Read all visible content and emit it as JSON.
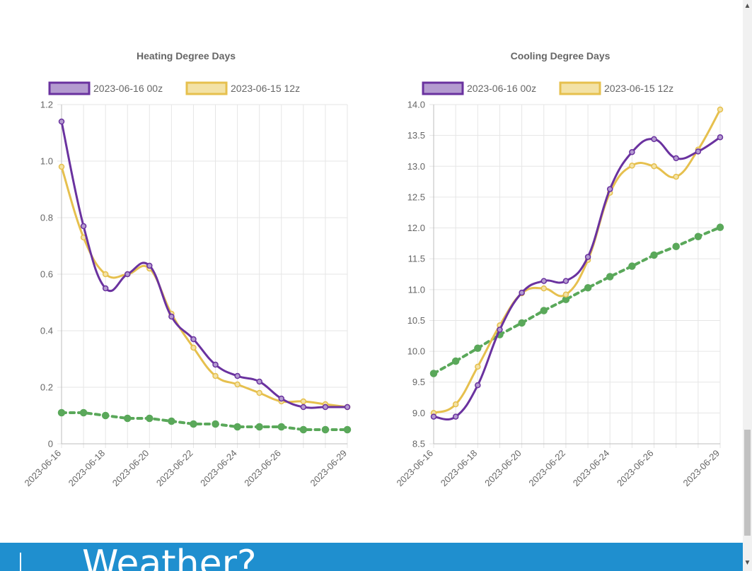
{
  "charts": [
    {
      "title": "Heating Degree Days",
      "legend": [
        "2023-06-16 00z",
        "2023-06-15 12z"
      ]
    },
    {
      "title": "Cooling Degree Days",
      "legend": [
        "2023-06-16 00z",
        "2023-06-15 12z"
      ]
    }
  ],
  "colors": {
    "run_00z": "#6a329f",
    "run_00z_fill": "#b49bd0",
    "run_12z": "#e6c04e",
    "run_12z_fill": "#f3e2a6",
    "normal": "#5aa85a",
    "band": "#1f8fcf"
  },
  "footer": {
    "brand": "Weather?"
  },
  "chart_data": [
    {
      "type": "line",
      "title": "Heating Degree Days",
      "ylim": [
        0,
        1.2
      ],
      "yticks": [
        "0",
        "0.2",
        "0.4",
        "0.6",
        "0.8",
        "1.0",
        "1.2"
      ],
      "x": [
        "2023-06-16",
        "2023-06-17",
        "2023-06-18",
        "2023-06-19",
        "2023-06-20",
        "2023-06-21",
        "2023-06-22",
        "2023-06-23",
        "2023-06-24",
        "2023-06-25",
        "2023-06-26",
        "2023-06-27",
        "2023-06-28",
        "2023-06-29"
      ],
      "xtick_labels": [
        "2023-06-16",
        "2023-06-18",
        "2023-06-20",
        "2023-06-22",
        "2023-06-24",
        "2023-06-26",
        "2023-06-29"
      ],
      "series": [
        {
          "name": "2023-06-16 00z",
          "values": [
            1.14,
            0.77,
            0.55,
            0.6,
            0.63,
            0.45,
            0.37,
            0.28,
            0.24,
            0.22,
            0.16,
            0.13,
            0.13,
            0.13
          ]
        },
        {
          "name": "2023-06-15 12z",
          "values": [
            0.98,
            0.73,
            0.6,
            0.6,
            0.62,
            0.46,
            0.34,
            0.24,
            0.21,
            0.18,
            0.15,
            0.15,
            0.14,
            0.13
          ]
        },
        {
          "values": [
            0.11,
            0.11,
            0.1,
            0.09,
            0.09,
            0.08,
            0.07,
            0.07,
            0.06,
            0.06,
            0.06,
            0.05,
            0.05,
            0.05
          ],
          "dashed": true
        }
      ],
      "legend_position": "top",
      "grid": true
    },
    {
      "type": "line",
      "title": "Cooling Degree Days",
      "ylim": [
        8.5,
        14.0
      ],
      "yticks": [
        "8.5",
        "9.0",
        "9.5",
        "10.0",
        "10.5",
        "11.0",
        "11.5",
        "12.0",
        "12.5",
        "13.0",
        "13.5",
        "14.0"
      ],
      "x": [
        "2023-06-16",
        "2023-06-17",
        "2023-06-18",
        "2023-06-19",
        "2023-06-20",
        "2023-06-21",
        "2023-06-22",
        "2023-06-23",
        "2023-06-24",
        "2023-06-25",
        "2023-06-26",
        "2023-06-27",
        "2023-06-28",
        "2023-06-29"
      ],
      "xtick_labels": [
        "2023-06-16",
        "2023-06-18",
        "2023-06-20",
        "2023-06-22",
        "2023-06-24",
        "2023-06-26",
        "2023-06-29"
      ],
      "series": [
        {
          "name": "2023-06-16 00z",
          "values": [
            8.94,
            8.94,
            9.45,
            10.35,
            10.95,
            11.14,
            11.14,
            11.53,
            12.63,
            13.23,
            13.44,
            13.13,
            13.24,
            13.47
          ]
        },
        {
          "name": "2023-06-15 12z",
          "values": [
            9.0,
            9.14,
            9.75,
            10.42,
            10.94,
            11.02,
            10.92,
            11.48,
            12.57,
            13.01,
            13.0,
            12.83,
            13.27,
            13.92
          ]
        },
        {
          "values": [
            9.64,
            9.84,
            10.05,
            10.27,
            10.46,
            10.66,
            10.84,
            11.03,
            11.21,
            11.38,
            11.56,
            11.7,
            11.86,
            12.01
          ],
          "dashed": true
        }
      ],
      "legend_position": "top",
      "grid": true
    }
  ]
}
